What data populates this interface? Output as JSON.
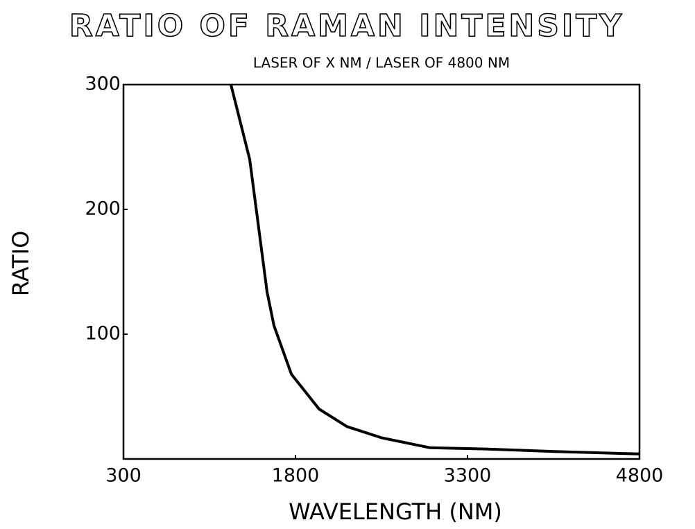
{
  "chart_data": {
    "type": "line",
    "title": "RATIO OF RAMAN INTENSITY",
    "subtitle": "LASER OF X NM / LASER OF 4800 NM",
    "x_label": "WAVELENGTH (NM)",
    "y_label": "RATIO",
    "x": [
      1237,
      1401,
      1552,
      1612,
      1764,
      2006,
      2248,
      2550,
      2973,
      3457,
      4062,
      4800
    ],
    "series": [
      {
        "name": "Ratio",
        "color": "#000000",
        "values": [
          300,
          240,
          134,
          107,
          68,
          40,
          26,
          17,
          9,
          8,
          6,
          4
        ]
      }
    ],
    "xlim": [
      300,
      4800
    ],
    "xticks": [
      300,
      1800,
      3300,
      4800
    ],
    "ylim": [
      0,
      300
    ],
    "yticks": [
      100,
      200,
      300
    ]
  }
}
